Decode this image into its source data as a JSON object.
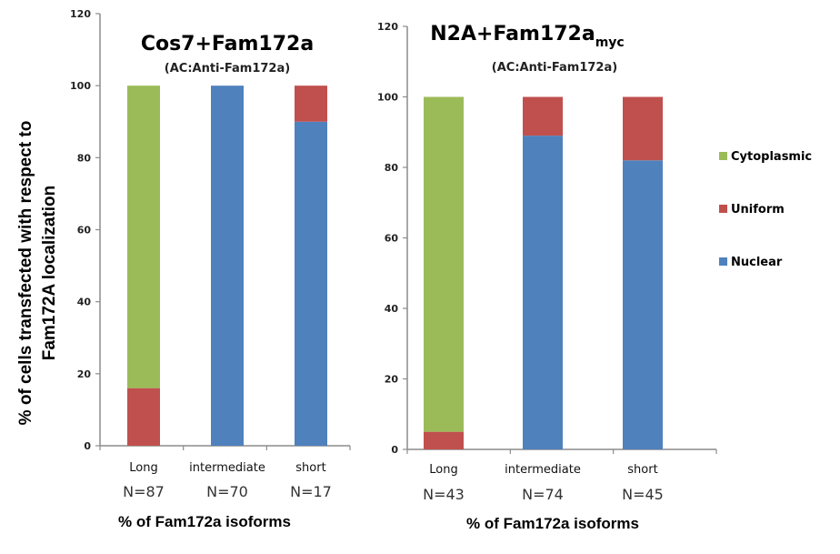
{
  "y_axis_label_line1": "% of cells transfected with respect to",
  "y_axis_label_line2": "Fam172A localization",
  "legend": [
    {
      "label": "Cytoplasmic",
      "color": "#9bbb59"
    },
    {
      "label": "Uniform",
      "color": "#c0504d"
    },
    {
      "label": "Nuclear",
      "color": "#4f81bd"
    }
  ],
  "chart_data": [
    {
      "type": "bar",
      "stacked": true,
      "title": "Cos7+Fam172a",
      "title_subscript": "",
      "subtitle": "(AC:Anti-Fam172a)",
      "xlabel": "% of Fam172a isoforms",
      "ylabel": "% of cells transfected with respect to Fam172A localization",
      "categories": [
        "Long",
        "intermediate",
        "short"
      ],
      "n_labels": [
        "N=87",
        "N=70",
        "N=17"
      ],
      "ylim": [
        0,
        120
      ],
      "yticks": [
        0,
        20,
        40,
        60,
        80,
        100,
        120
      ],
      "grid": false,
      "series": [
        {
          "name": "Nuclear",
          "color": "#4f81bd",
          "values": [
            0,
            100,
            90
          ]
        },
        {
          "name": "Uniform",
          "color": "#c0504d",
          "values": [
            16,
            0,
            10
          ]
        },
        {
          "name": "Cytoplasmic",
          "color": "#9bbb59",
          "values": [
            84,
            0,
            0
          ]
        }
      ]
    },
    {
      "type": "bar",
      "stacked": true,
      "title": "N2A+Fam172a",
      "title_subscript": "myc",
      "subtitle": "(AC:Anti-Fam172a)",
      "xlabel": "% of Fam172a isoforms",
      "ylabel": "",
      "categories": [
        "Long",
        "intermediate",
        "short"
      ],
      "n_labels": [
        "N=43",
        "N=74",
        "N=45"
      ],
      "ylim": [
        0,
        120
      ],
      "yticks": [
        0,
        20,
        40,
        60,
        80,
        100,
        120
      ],
      "grid": false,
      "legend_position": "right",
      "series": [
        {
          "name": "Nuclear",
          "color": "#4f81bd",
          "values": [
            0,
            89,
            82
          ]
        },
        {
          "name": "Uniform",
          "color": "#c0504d",
          "values": [
            5,
            11,
            18
          ]
        },
        {
          "name": "Cytoplasmic",
          "color": "#9bbb59",
          "values": [
            95,
            0,
            0
          ]
        }
      ]
    }
  ]
}
